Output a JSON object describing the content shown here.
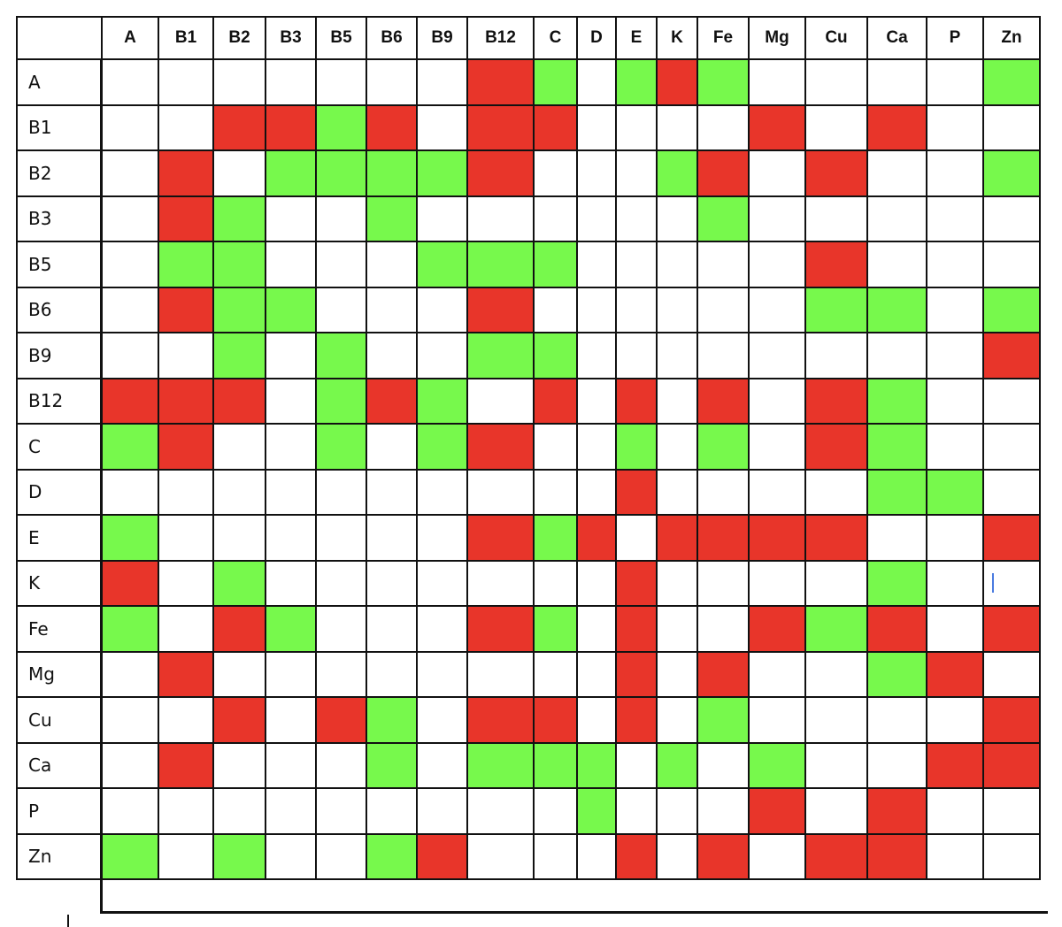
{
  "colors": {
    "red": "#e8352a",
    "green": "#77f94c",
    "empty": "#ffffff",
    "cursor": "#4a7be0"
  },
  "legend_codes": {
    "R": "red",
    "G": "green",
    "-": "empty"
  },
  "columns": [
    "A",
    "B1",
    "B2",
    "B3",
    "B5",
    "B6",
    "B9",
    "B12",
    "C",
    "D",
    "E",
    "K",
    "Fe",
    "Mg",
    "Cu",
    "Ca",
    "P",
    "Zn"
  ],
  "rows": [
    {
      "label": "A",
      "cells": "-------RG-GRG----G"
    },
    {
      "label": "B1",
      "cells": "--RRGR-RR----R-R--"
    },
    {
      "label": "B2",
      "cells": "-R-GGGGR---GR-R--G"
    },
    {
      "label": "B3",
      "cells": "-RG--G------G-----"
    },
    {
      "label": "B5",
      "cells": "-GG---GGG-----R---"
    },
    {
      "label": "B6",
      "cells": "-RGG---R------GG-G"
    },
    {
      "label": "B9",
      "cells": "--G-G--GG--------R"
    },
    {
      "label": "B12",
      "cells": "RRR-GRG-R-R-R-RG--"
    },
    {
      "label": "C",
      "cells": "GR--G-GR--G-G-RG--"
    },
    {
      "label": "D",
      "cells": "----------R----GG-"
    },
    {
      "label": "E",
      "cells": "G------RGR-RRRR--R"
    },
    {
      "label": "K",
      "cells": "R-G-------R----G--"
    },
    {
      "label": "Fe",
      "cells": "G-RG---RG-R--RGR-R"
    },
    {
      "label": "Mg",
      "cells": "-R--------R-R--GR-"
    },
    {
      "label": "Cu",
      "cells": "--R-RG-RR-R-G----R"
    },
    {
      "label": "Ca",
      "cells": "-R---G-GGG-G-G--RR"
    },
    {
      "label": "P",
      "cells": "---------G---R-R--"
    },
    {
      "label": "Zn",
      "cells": "G-G--GR---R-R-RR--"
    }
  ],
  "text_cursor": {
    "row": "K",
    "column": "Zn"
  }
}
